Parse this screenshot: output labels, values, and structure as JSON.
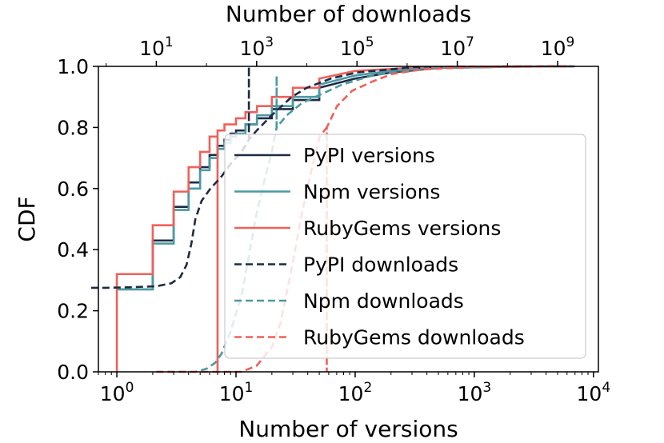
{
  "chart_data": {
    "type": "line",
    "ylabel": "CDF",
    "xlabel_bottom": "Number of versions",
    "xlabel_top": "Number of downloads",
    "ylim": [
      0.0,
      1.0
    ],
    "x_bottom_scale": "log",
    "x_top_scale": "log",
    "y_ticks": [
      "0.0",
      "0.2",
      "0.4",
      "0.6",
      "0.8",
      "1.0"
    ],
    "x_bottom_ticks": [
      {
        "base": "10",
        "exp": "0"
      },
      {
        "base": "10",
        "exp": "1"
      },
      {
        "base": "10",
        "exp": "2"
      },
      {
        "base": "10",
        "exp": "3"
      },
      {
        "base": "10",
        "exp": "4"
      }
    ],
    "x_top_ticks": [
      {
        "base": "10",
        "exp": "1"
      },
      {
        "base": "10",
        "exp": "3"
      },
      {
        "base": "10",
        "exp": "5"
      },
      {
        "base": "10",
        "exp": "7"
      },
      {
        "base": "10",
        "exp": "9"
      }
    ],
    "legend_position": "right",
    "series": [
      {
        "name": "PyPI versions",
        "axis": "bottom",
        "style": "solid",
        "color": "#1f2a44",
        "points": [
          [
            1,
            0.27
          ],
          [
            2,
            0.27
          ],
          [
            2,
            0.43
          ],
          [
            3,
            0.43
          ],
          [
            3,
            0.54
          ],
          [
            4,
            0.54
          ],
          [
            4,
            0.62
          ],
          [
            5,
            0.62
          ],
          [
            5,
            0.67
          ],
          [
            6,
            0.67
          ],
          [
            6,
            0.71
          ],
          [
            7,
            0.71
          ],
          [
            7,
            0.74
          ],
          [
            8,
            0.74
          ],
          [
            8,
            0.76
          ],
          [
            9,
            0.76
          ],
          [
            9,
            0.78
          ],
          [
            10,
            0.78
          ],
          [
            10,
            0.79
          ],
          [
            12,
            0.79
          ],
          [
            12,
            0.81
          ],
          [
            15,
            0.81
          ],
          [
            15,
            0.83
          ],
          [
            20,
            0.83
          ],
          [
            20,
            0.86
          ],
          [
            30,
            0.86
          ],
          [
            30,
            0.89
          ],
          [
            50,
            0.89
          ],
          [
            50,
            0.93
          ],
          [
            100,
            0.96
          ],
          [
            200,
            0.98
          ],
          [
            500,
            0.995
          ],
          [
            2000,
            0.999
          ],
          [
            6000,
            1.0
          ]
        ]
      },
      {
        "name": "Npm versions",
        "axis": "bottom",
        "style": "solid",
        "color": "#4a9aa3",
        "points": [
          [
            1,
            0.27
          ],
          [
            2,
            0.27
          ],
          [
            2,
            0.42
          ],
          [
            3,
            0.42
          ],
          [
            3,
            0.53
          ],
          [
            4,
            0.53
          ],
          [
            4,
            0.6
          ],
          [
            5,
            0.6
          ],
          [
            5,
            0.66
          ],
          [
            6,
            0.66
          ],
          [
            6,
            0.7
          ],
          [
            7,
            0.7
          ],
          [
            7,
            0.73
          ],
          [
            8,
            0.73
          ],
          [
            8,
            0.75
          ],
          [
            9,
            0.75
          ],
          [
            9,
            0.77
          ],
          [
            10,
            0.77
          ],
          [
            10,
            0.78
          ],
          [
            12,
            0.78
          ],
          [
            12,
            0.81
          ],
          [
            15,
            0.81
          ],
          [
            15,
            0.84
          ],
          [
            20,
            0.84
          ],
          [
            20,
            0.87
          ],
          [
            30,
            0.87
          ],
          [
            30,
            0.9
          ],
          [
            50,
            0.9
          ],
          [
            50,
            0.94
          ],
          [
            100,
            0.97
          ],
          [
            200,
            0.985
          ],
          [
            500,
            0.995
          ],
          [
            2000,
            0.999
          ],
          [
            7000,
            1.0
          ]
        ]
      },
      {
        "name": "RubyGems versions",
        "axis": "bottom",
        "style": "solid",
        "color": "#f0605a",
        "points": [
          [
            1,
            0.0
          ],
          [
            1,
            0.32
          ],
          [
            2,
            0.32
          ],
          [
            2,
            0.48
          ],
          [
            3,
            0.48
          ],
          [
            3,
            0.59
          ],
          [
            4,
            0.59
          ],
          [
            4,
            0.67
          ],
          [
            5,
            0.67
          ],
          [
            5,
            0.72
          ],
          [
            6,
            0.72
          ],
          [
            6,
            0.77
          ],
          [
            7,
            0.77
          ],
          [
            7,
            0.0
          ],
          [
            7,
            0.79
          ],
          [
            8,
            0.79
          ],
          [
            8,
            0.81
          ],
          [
            10,
            0.81
          ],
          [
            10,
            0.83
          ],
          [
            12,
            0.83
          ],
          [
            12,
            0.85
          ],
          [
            15,
            0.85
          ],
          [
            15,
            0.87
          ],
          [
            20,
            0.87
          ],
          [
            20,
            0.9
          ],
          [
            30,
            0.9
          ],
          [
            30,
            0.93
          ],
          [
            50,
            0.93
          ],
          [
            50,
            0.96
          ],
          [
            100,
            0.985
          ],
          [
            300,
            0.995
          ],
          [
            1000,
            0.999
          ],
          [
            3000,
            1.0
          ]
        ]
      },
      {
        "name": "PyPI downloads",
        "axis": "top",
        "style": "dashed",
        "color": "#1f2a44",
        "points": [
          [
            0.5,
            0.275
          ],
          [
            1,
            0.275
          ],
          [
            3,
            0.277
          ],
          [
            10,
            0.28
          ],
          [
            20,
            0.29
          ],
          [
            30,
            0.31
          ],
          [
            40,
            0.35
          ],
          [
            50,
            0.42
          ],
          [
            60,
            0.5
          ],
          [
            80,
            0.56
          ],
          [
            120,
            0.6
          ],
          [
            200,
            0.64
          ],
          [
            300,
            0.68
          ],
          [
            500,
            0.72
          ],
          [
            700,
            0.76
          ],
          [
            700,
            1.0
          ],
          [
            700,
            0.76
          ],
          [
            1000,
            0.79
          ],
          [
            2000,
            0.84
          ],
          [
            5000,
            0.9
          ],
          [
            10000,
            0.93
          ],
          [
            30000,
            0.96
          ],
          [
            100000,
            0.98
          ],
          [
            1000000,
            0.995
          ],
          [
            10000000,
            0.999
          ],
          [
            2000000000,
            1.0
          ]
        ]
      },
      {
        "name": "Npm downloads",
        "axis": "top",
        "style": "dashed",
        "color": "#4a9aa3",
        "points": [
          [
            10,
            0.0
          ],
          [
            60,
            0.0
          ],
          [
            100,
            0.01
          ],
          [
            150,
            0.03
          ],
          [
            200,
            0.06
          ],
          [
            300,
            0.13
          ],
          [
            500,
            0.25
          ],
          [
            700,
            0.38
          ],
          [
            1000,
            0.52
          ],
          [
            1500,
            0.64
          ],
          [
            2000,
            0.72
          ],
          [
            2500,
            0.8
          ],
          [
            2500,
            0.97
          ],
          [
            2500,
            0.8
          ],
          [
            4000,
            0.84
          ],
          [
            8000,
            0.88
          ],
          [
            20000,
            0.91
          ],
          [
            50000,
            0.94
          ],
          [
            200000,
            0.97
          ],
          [
            1000000,
            0.99
          ],
          [
            10000000,
            0.998
          ],
          [
            2000000000,
            1.0
          ]
        ]
      },
      {
        "name": "RubyGems downloads",
        "axis": "top",
        "style": "dashed",
        "color": "#f0605a",
        "points": [
          [
            10,
            0.0
          ],
          [
            500,
            0.0
          ],
          [
            1000,
            0.02
          ],
          [
            2000,
            0.08
          ],
          [
            3000,
            0.16
          ],
          [
            5000,
            0.34
          ],
          [
            8000,
            0.52
          ],
          [
            12000,
            0.65
          ],
          [
            18000,
            0.77
          ],
          [
            25000,
            0.8
          ],
          [
            25000,
            0.0
          ],
          [
            25000,
            0.8
          ],
          [
            40000,
            0.87
          ],
          [
            80000,
            0.92
          ],
          [
            200000,
            0.95
          ],
          [
            500000,
            0.975
          ],
          [
            2000000,
            0.99
          ],
          [
            20000000,
            0.998
          ],
          [
            2000000000,
            1.0
          ]
        ]
      }
    ]
  }
}
